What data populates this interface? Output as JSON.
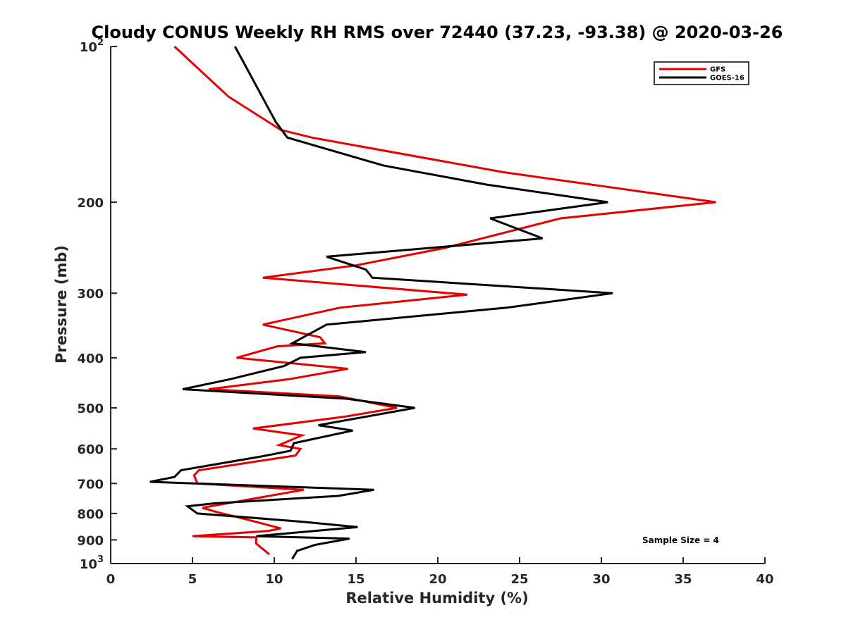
{
  "chart_data": {
    "type": "line",
    "title": "Cloudy CONUS Weekly RH RMS over 72440 (37.23, -93.38) @ 2020-03-26",
    "xlabel": "Relative Humidity (%)",
    "ylabel": "Pressure (mb)",
    "xlim": [
      0,
      40
    ],
    "ylim": [
      100,
      1000
    ],
    "y_scale": "log",
    "y_reversed": true,
    "x_ticks": [
      "0",
      "5",
      "10",
      "15",
      "20",
      "25",
      "30",
      "35",
      "40"
    ],
    "y_ticks": [
      {
        "value": 100,
        "base": "10",
        "exp": "2"
      },
      {
        "value": 200,
        "label": "200"
      },
      {
        "value": 300,
        "label": "300"
      },
      {
        "value": 400,
        "label": "400"
      },
      {
        "value": 500,
        "label": "500"
      },
      {
        "value": 600,
        "label": "600"
      },
      {
        "value": 700,
        "label": "700"
      },
      {
        "value": 800,
        "label": "800"
      },
      {
        "value": 900,
        "label": "900"
      },
      {
        "value": 1000,
        "base": "10",
        "exp": "3"
      }
    ],
    "grid": false,
    "legend_position": "top-right",
    "annotation": "Sample Size = 4",
    "series": [
      {
        "name": "GFS",
        "color": "#e60000",
        "points": [
          [
            3.9,
            100
          ],
          [
            7.2,
            125
          ],
          [
            10.4,
            145
          ],
          [
            12.3,
            150
          ],
          [
            24.0,
            175
          ],
          [
            37.0,
            200
          ],
          [
            27.5,
            215
          ],
          [
            20.5,
            245
          ],
          [
            15.0,
            265
          ],
          [
            9.3,
            280
          ],
          [
            21.8,
            302
          ],
          [
            14.0,
            320
          ],
          [
            9.3,
            345
          ],
          [
            12.8,
            365
          ],
          [
            13.1,
            375
          ],
          [
            10.2,
            380
          ],
          [
            7.7,
            400
          ],
          [
            14.5,
            420
          ],
          [
            10.9,
            440
          ],
          [
            6.0,
            460
          ],
          [
            14.0,
            475
          ],
          [
            17.5,
            500
          ],
          [
            14.3,
            520
          ],
          [
            8.7,
            548
          ],
          [
            11.7,
            565
          ],
          [
            10.3,
            590
          ],
          [
            11.6,
            600
          ],
          [
            11.3,
            618
          ],
          [
            5.4,
            660
          ],
          [
            5.1,
            675
          ],
          [
            5.3,
            700
          ],
          [
            11.8,
            720
          ],
          [
            5.6,
            780
          ],
          [
            6.5,
            795
          ],
          [
            8.2,
            820
          ],
          [
            10.4,
            855
          ],
          [
            9.6,
            865
          ],
          [
            5.0,
            885
          ],
          [
            8.9,
            890
          ],
          [
            8.9,
            915
          ],
          [
            9.7,
            960
          ]
        ]
      },
      {
        "name": "GOES-16",
        "color": "#000000",
        "points": [
          [
            7.6,
            100
          ],
          [
            10.1,
            140
          ],
          [
            10.8,
            150
          ],
          [
            16.7,
            170
          ],
          [
            23.0,
            185
          ],
          [
            30.4,
            200
          ],
          [
            23.2,
            215
          ],
          [
            26.4,
            235
          ],
          [
            13.2,
            255
          ],
          [
            15.6,
            270
          ],
          [
            16.0,
            280
          ],
          [
            30.7,
            300
          ],
          [
            24.2,
            320
          ],
          [
            13.2,
            345
          ],
          [
            11.1,
            375
          ],
          [
            15.6,
            390
          ],
          [
            11.6,
            400
          ],
          [
            10.6,
            415
          ],
          [
            7.3,
            440
          ],
          [
            4.4,
            460
          ],
          [
            14.4,
            480
          ],
          [
            18.6,
            500
          ],
          [
            12.7,
            540
          ],
          [
            14.8,
            553
          ],
          [
            11.2,
            585
          ],
          [
            11.0,
            605
          ],
          [
            9.3,
            620
          ],
          [
            4.3,
            660
          ],
          [
            3.9,
            680
          ],
          [
            2.4,
            695
          ],
          [
            16.1,
            720
          ],
          [
            13.9,
            740
          ],
          [
            6.3,
            765
          ],
          [
            4.7,
            775
          ],
          [
            5.3,
            800
          ],
          [
            11.7,
            830
          ],
          [
            15.1,
            850
          ],
          [
            8.9,
            885
          ],
          [
            14.6,
            895
          ],
          [
            12.5,
            920
          ],
          [
            11.4,
            945
          ],
          [
            11.1,
            980
          ]
        ]
      }
    ]
  }
}
